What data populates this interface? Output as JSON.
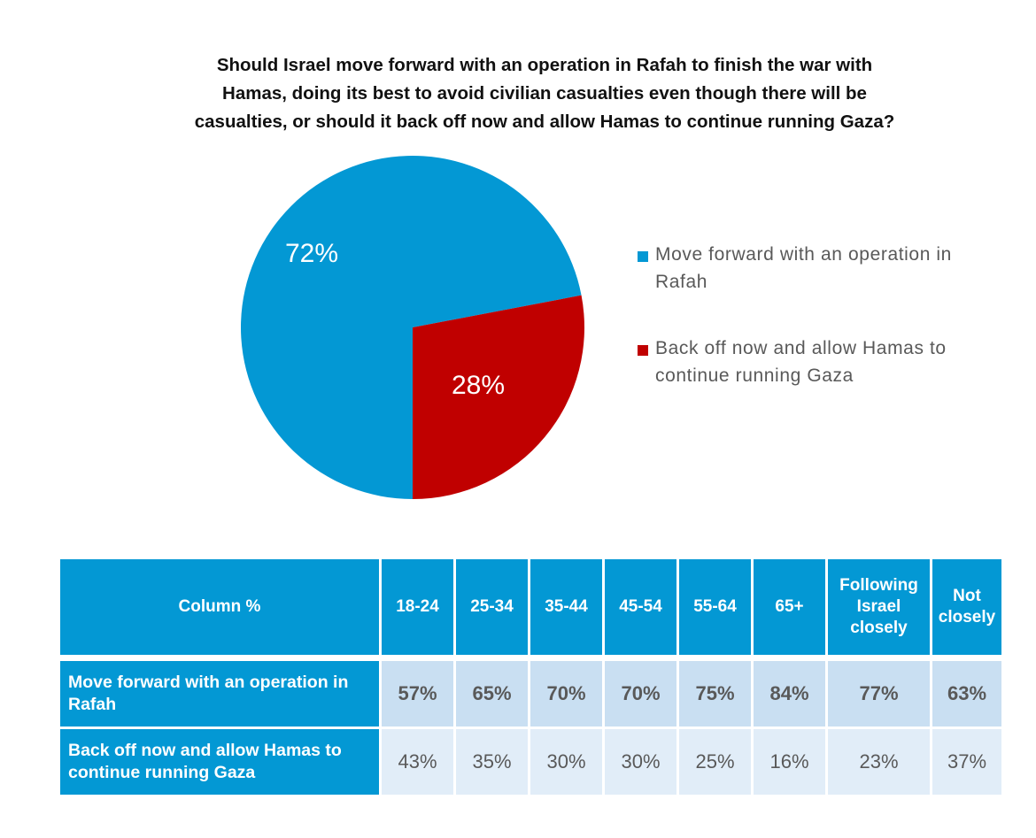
{
  "chart_data": [
    {
      "type": "pie",
      "title": "Should Israel move forward with an operation in Rafah to finish the war with Hamas, doing its best to avoid civilian casualties even though there will be casualties, or should it back off now and allow Hamas to continue running Gaza?",
      "title_lines": [
        "Should Israel move forward with an operation in Rafah to finish the war with",
        "Hamas, doing its best to avoid civilian casualties even though there will be",
        "casualties, or should it back off now and allow Hamas to continue running Gaza?"
      ],
      "slices": [
        {
          "label": "Move forward with an operation in Rafah",
          "value": 72,
          "data_label": "72%",
          "color": "#0398d4"
        },
        {
          "label": "Back off now and allow Hamas to continue running Gaza",
          "value": 28,
          "data_label": "28%",
          "color": "#c00000"
        }
      ],
      "legend_position": "right",
      "legend": [
        {
          "label": "Move forward with an operation in Rafah",
          "color": "#0398d4"
        },
        {
          "label": "Back off now and allow Hamas to continue running Gaza",
          "color": "#c00000"
        }
      ]
    },
    {
      "type": "table",
      "corner_header": "Column %",
      "columns": [
        "18-24",
        "25-34",
        "35-44",
        "45-54",
        "55-64",
        "65+",
        "Following Israel closely",
        "Not closely"
      ],
      "rows": [
        {
          "label": "Move forward with an operation in Rafah",
          "values": [
            "57%",
            "65%",
            "70%",
            "70%",
            "75%",
            "84%",
            "77%",
            "63%"
          ]
        },
        {
          "label": "Back off now and allow Hamas to continue running Gaza",
          "values": [
            "43%",
            "35%",
            "30%",
            "30%",
            "25%",
            "16%",
            "23%",
            "37%"
          ]
        }
      ]
    }
  ],
  "colors": {
    "header_blue": "#0398d4",
    "forward_blue": "#0398d4",
    "backoff_red": "#c00000",
    "row1_bg": "#c9dff2",
    "row2_bg": "#e1edf8",
    "value_text": "#595959"
  }
}
